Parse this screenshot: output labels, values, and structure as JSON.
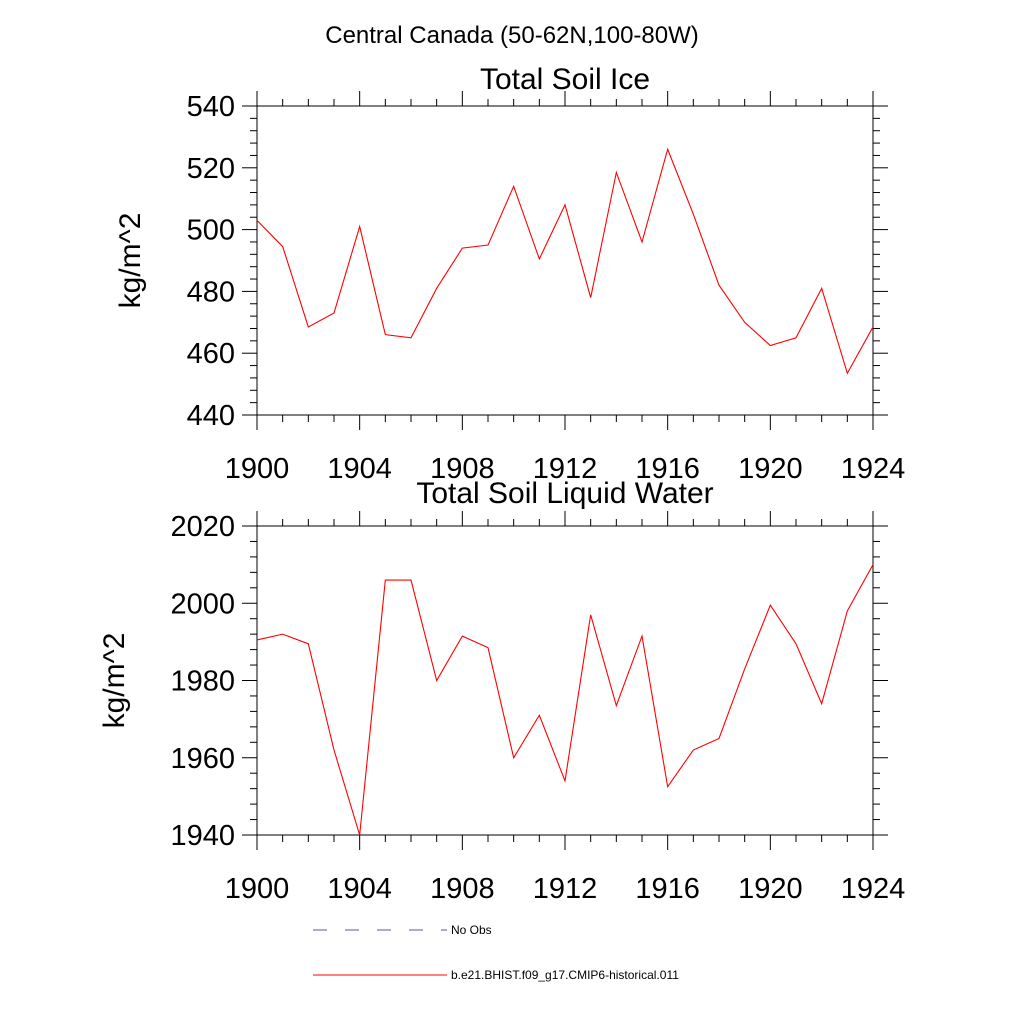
{
  "figure": {
    "title": "Central Canada (50-62N,100-80W)"
  },
  "chart_data": [
    {
      "type": "line",
      "title": "Total Soil Ice",
      "xlabel": "",
      "ylabel": "kg/m^2",
      "xlim": [
        1900,
        1924
      ],
      "ylim": [
        440,
        540
      ],
      "xticks": [
        1900,
        1904,
        1908,
        1912,
        1916,
        1920,
        1924
      ],
      "yticks": [
        440,
        460,
        480,
        500,
        520,
        540
      ],
      "series": [
        {
          "name": "b.e21.BHIST.f09_g17.CMIP6-historical.011",
          "color": "#ff0000",
          "x": [
            1900,
            1901,
            1902,
            1903,
            1904,
            1905,
            1906,
            1907,
            1908,
            1909,
            1910,
            1911,
            1912,
            1913,
            1914,
            1915,
            1916,
            1917,
            1918,
            1919,
            1920,
            1921,
            1922,
            1923,
            1924
          ],
          "values": [
            503,
            494.5,
            468.5,
            473,
            501,
            466,
            465,
            481,
            494,
            495,
            514,
            490.5,
            508,
            478,
            518.5,
            496,
            526,
            505,
            482,
            470,
            462.5,
            465,
            481,
            453.5,
            468.5
          ]
        }
      ]
    },
    {
      "type": "line",
      "title": "Total Soil Liquid Water",
      "xlabel": "",
      "ylabel": "kg/m^2",
      "xlim": [
        1900,
        1924
      ],
      "ylim": [
        1940,
        2020
      ],
      "xticks": [
        1900,
        1904,
        1908,
        1912,
        1916,
        1920,
        1924
      ],
      "yticks": [
        1940,
        1960,
        1980,
        2000,
        2020
      ],
      "series": [
        {
          "name": "b.e21.BHIST.f09_g17.CMIP6-historical.011",
          "color": "#ff0000",
          "x": [
            1900,
            1901,
            1902,
            1903,
            1904,
            1905,
            1906,
            1907,
            1908,
            1909,
            1910,
            1911,
            1912,
            1913,
            1914,
            1915,
            1916,
            1917,
            1918,
            1919,
            1920,
            1921,
            1922,
            1923,
            1924
          ],
          "values": [
            1990.5,
            1992,
            1989.5,
            1962,
            1940,
            2006,
            2006,
            1980,
            1991.5,
            1988.5,
            1960,
            1971,
            1954,
            1997,
            1973.5,
            1991.5,
            1952.5,
            1962,
            1965,
            1983,
            1999.5,
            1989.5,
            1974,
            1998,
            2010
          ]
        }
      ]
    }
  ],
  "legend": {
    "placement": "bottom",
    "entries": [
      {
        "label": "No Obs",
        "color": "#5a5a8a",
        "dash": "dashed"
      },
      {
        "label": "b.e21.BHIST.f09_g17.CMIP6-historical.011",
        "color": "#ff0000",
        "dash": "solid"
      }
    ]
  }
}
